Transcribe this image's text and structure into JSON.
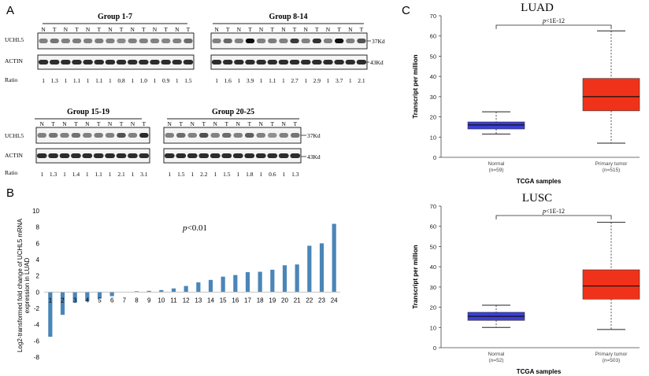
{
  "panels": {
    "a": "A",
    "b": "B",
    "c": "C"
  },
  "western": {
    "lanes_header": [
      "N",
      "T",
      "N",
      "T",
      "N",
      "T",
      "N",
      "T",
      "N",
      "T",
      "N",
      "T",
      "N",
      "T"
    ],
    "lanes_header_g3": [
      "N",
      "T",
      "N",
      "T",
      "N",
      "T",
      "N",
      "T",
      "N",
      "T"
    ],
    "lanes_header_g4": [
      "N",
      "T",
      "N",
      "T",
      "N",
      "T",
      "N",
      "T",
      "N",
      "T",
      "N",
      "T"
    ],
    "row_uchl5": "UCHL5",
    "row_actin": "ACTIN",
    "row_ratio": "Ratio",
    "kd37": "37Kd",
    "kd43": "43Kd",
    "groups": [
      {
        "title": "Group 1-7",
        "ratios": [
          "1",
          "1.3",
          "1",
          "1.1",
          "1",
          "1.1",
          "1",
          "0.8",
          "1",
          "1.0",
          "1",
          "0.9",
          "1",
          "1.5"
        ]
      },
      {
        "title": "Group 8-14",
        "ratios": [
          "1",
          "1.6",
          "1",
          "3.9",
          "1",
          "1.1",
          "1",
          "2.7",
          "1",
          "2.9",
          "1",
          "3.7",
          "1",
          "2.1"
        ]
      },
      {
        "title": "Group 15-19",
        "ratios": [
          "1",
          "1.3",
          "1",
          "1.4",
          "1",
          "1.1",
          "1",
          "2.1",
          "1",
          "3.1"
        ]
      },
      {
        "title": "Group 20-25",
        "ratios": [
          "1",
          "1.5",
          "1",
          "2.2",
          "1",
          "1.5",
          "1",
          "1.8",
          "1",
          "0.6",
          "1",
          "1.3"
        ]
      }
    ]
  },
  "chart_data": [
    {
      "type": "bar",
      "title": "",
      "annotation": "p<0.01",
      "annotation_p": "p",
      "annotation_rest": "<0.01",
      "ylabel_line1": "Log2-transformed fold change of UCHL5 mRNA",
      "ylabel_line2": "expression in LUAD",
      "categories": [
        "1",
        "2",
        "3",
        "4",
        "5",
        "6",
        "7",
        "8",
        "9",
        "10",
        "11",
        "12",
        "13",
        "14",
        "15",
        "16",
        "17",
        "18",
        "19",
        "20",
        "21",
        "22",
        "23",
        "24"
      ],
      "values": [
        -5.5,
        -2.8,
        -1.3,
        -1.1,
        -0.8,
        -0.5,
        0,
        0.1,
        0.15,
        0.25,
        0.45,
        0.75,
        1.2,
        1.5,
        1.9,
        2.1,
        2.45,
        2.5,
        2.75,
        3.3,
        3.4,
        5.7,
        6.0,
        8.4
      ],
      "ylim": [
        -8,
        10
      ],
      "yticks": [
        "-8",
        "-6",
        "-4",
        "-2",
        "0",
        "2",
        "4",
        "6",
        "8",
        "10"
      ],
      "ytick_values": [
        -8,
        -6,
        -4,
        -2,
        0,
        2,
        4,
        6,
        8,
        10
      ],
      "color": "#4a86b8"
    },
    {
      "type": "box",
      "title": "LUAD",
      "pvalue": "p<1E-12",
      "ylabel": "Transcript per million",
      "xlabel": "TCGA samples",
      "ylim": [
        0,
        70
      ],
      "yticks": [
        "0",
        "10",
        "20",
        "30",
        "40",
        "50",
        "60",
        "70"
      ],
      "ytick_values": [
        0,
        10,
        20,
        30,
        40,
        50,
        60,
        70
      ],
      "groups": [
        {
          "name": "Normal",
          "n": "(n=59)",
          "whisker_low": 11.5,
          "q1": 14,
          "median": 16,
          "q3": 17.5,
          "whisker_high": 22.5,
          "color": "#3b3fd6"
        },
        {
          "name": "Primary tumor",
          "n": "(n=515)",
          "whisker_low": 7,
          "q1": 23,
          "median": 30,
          "q3": 39,
          "whisker_high": 62.5,
          "color": "#f0321a"
        }
      ]
    },
    {
      "type": "box",
      "title": "LUSC",
      "pvalue": "p<1E-12",
      "ylabel": "Transcript per million",
      "xlabel": "TCGA samples",
      "ylim": [
        0,
        70
      ],
      "yticks": [
        "0",
        "10",
        "20",
        "30",
        "40",
        "50",
        "60",
        "70"
      ],
      "ytick_values": [
        0,
        10,
        20,
        30,
        40,
        50,
        60,
        70
      ],
      "groups": [
        {
          "name": "Normal",
          "n": "(n=52)",
          "whisker_low": 10,
          "q1": 13.5,
          "median": 15.5,
          "q3": 17.5,
          "whisker_high": 21,
          "color": "#3b3fd6"
        },
        {
          "name": "Primary tumor",
          "n": "(n=503)",
          "whisker_low": 9,
          "q1": 24,
          "median": 30.5,
          "q3": 38.5,
          "whisker_high": 62,
          "color": "#f0321a"
        }
      ]
    }
  ]
}
